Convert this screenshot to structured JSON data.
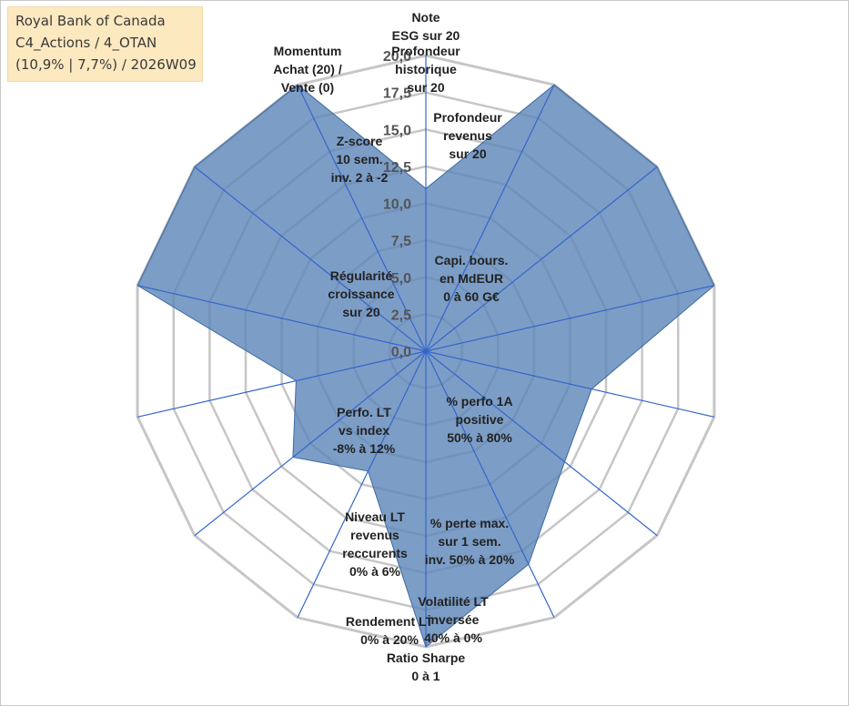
{
  "info": {
    "line1": "Royal Bank of Canada",
    "line2": "C4_Actions / 4_OTAN",
    "line3": "(10,9% | 7,7%) / 2026W09"
  },
  "chart_data": {
    "type": "radar",
    "rmax": 20,
    "grid_levels": 8,
    "ticks": [
      "0,0",
      "2,5",
      "5,0",
      "7,5",
      "10,0",
      "12,5",
      "15,0",
      "17,5",
      "20,0"
    ],
    "axes": [
      [
        "Note",
        "ESG sur 20"
      ],
      [
        "Profondeur",
        "historique",
        "sur 20"
      ],
      [
        "Profondeur",
        "revenus",
        "sur 20"
      ],
      [
        "Capi. bours.",
        "en MdEUR",
        "0 à 60 G€"
      ],
      [
        "% perfo 1A",
        "positive",
        "50% à 80%"
      ],
      [
        "% perte max.",
        "sur 1 sem.",
        "inv. 50% à 20%"
      ],
      [
        "Volatilité LT",
        "inversée",
        "40% à 0%"
      ],
      [
        "Ratio Sharpe",
        "0 à 1"
      ],
      [
        "Rendement LT",
        "0% à 20%"
      ],
      [
        "Niveau LT",
        "revenus",
        "reccurents",
        "0% à 6%"
      ],
      [
        "Perfo. LT",
        "vs index",
        "-8% à 12%"
      ],
      [
        "Régularité",
        "croissance",
        "sur 20"
      ],
      [
        "Z-score",
        "10 sem.",
        "inv. 2 à -2"
      ],
      [
        "Momentum",
        "Achat (20) /",
        "Vente (0)"
      ]
    ],
    "series": [
      {
        "values": [
          11,
          20,
          20,
          20,
          11.5,
          12,
          16,
          20,
          9,
          11.5,
          9,
          20,
          20,
          20
        ]
      }
    ],
    "colors": {
      "fill": "#5b84b8",
      "stroke": "#3f6aa0",
      "grid": "#c6c6c6",
      "axis": "#3366cc"
    }
  }
}
